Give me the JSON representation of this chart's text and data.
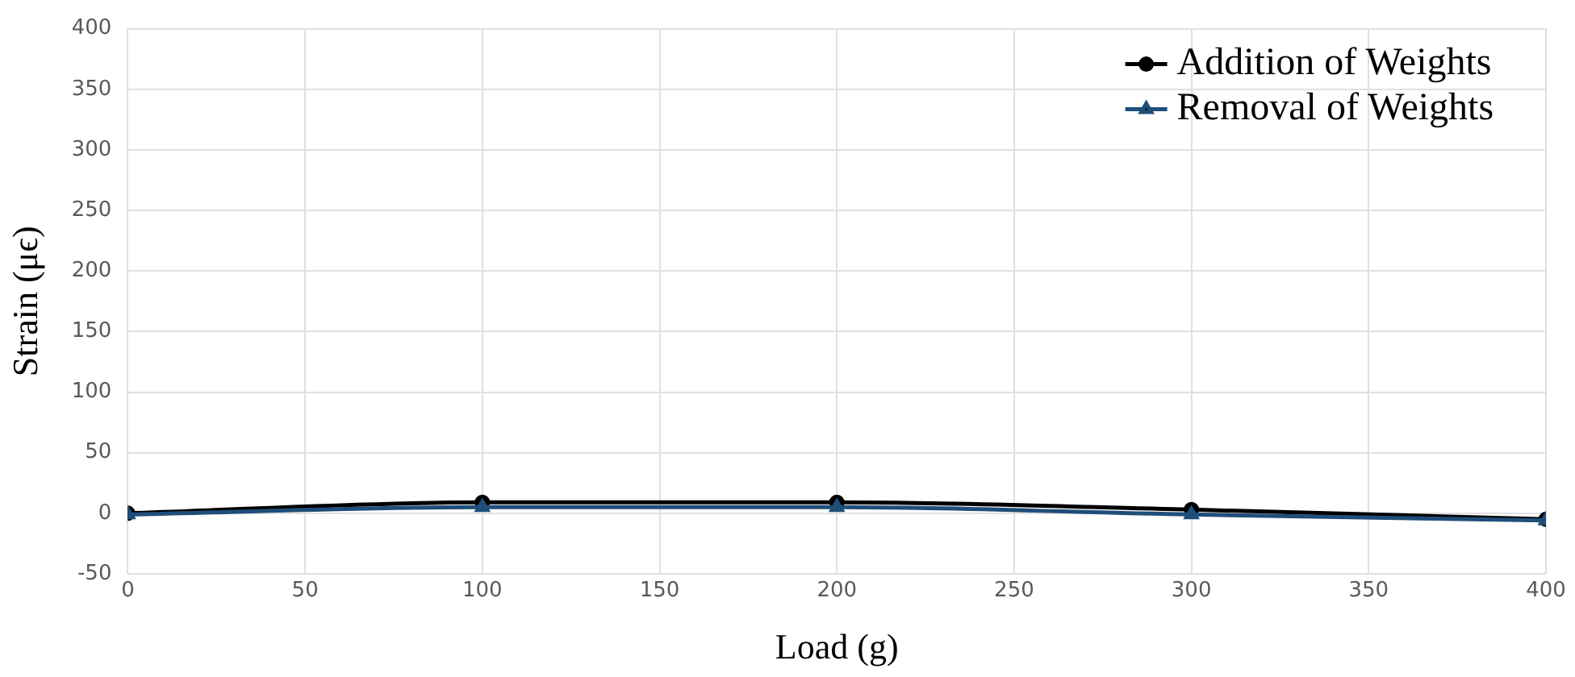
{
  "chart_data": {
    "type": "line",
    "xlabel": "Load (g)",
    "ylabel": "Strain (μϵ)",
    "x": [
      0,
      100,
      200,
      300,
      400
    ],
    "series": [
      {
        "name": "Addition of Weights",
        "color": "#000000",
        "marker": "circle",
        "values": [
          0,
          9,
          9,
          3,
          -5
        ]
      },
      {
        "name": "Removal of Weights",
        "color": "#1f4e79",
        "marker": "triangle",
        "values": [
          -1,
          5,
          5,
          -1,
          -6
        ]
      }
    ],
    "xlim": [
      0,
      400
    ],
    "xticks": [
      0,
      50,
      100,
      150,
      200,
      250,
      300,
      350,
      400
    ],
    "ylim": [
      -50,
      400
    ],
    "yticks": [
      -50,
      0,
      50,
      100,
      150,
      200,
      250,
      300,
      350,
      400
    ],
    "grid": true,
    "legend": "top right"
  }
}
